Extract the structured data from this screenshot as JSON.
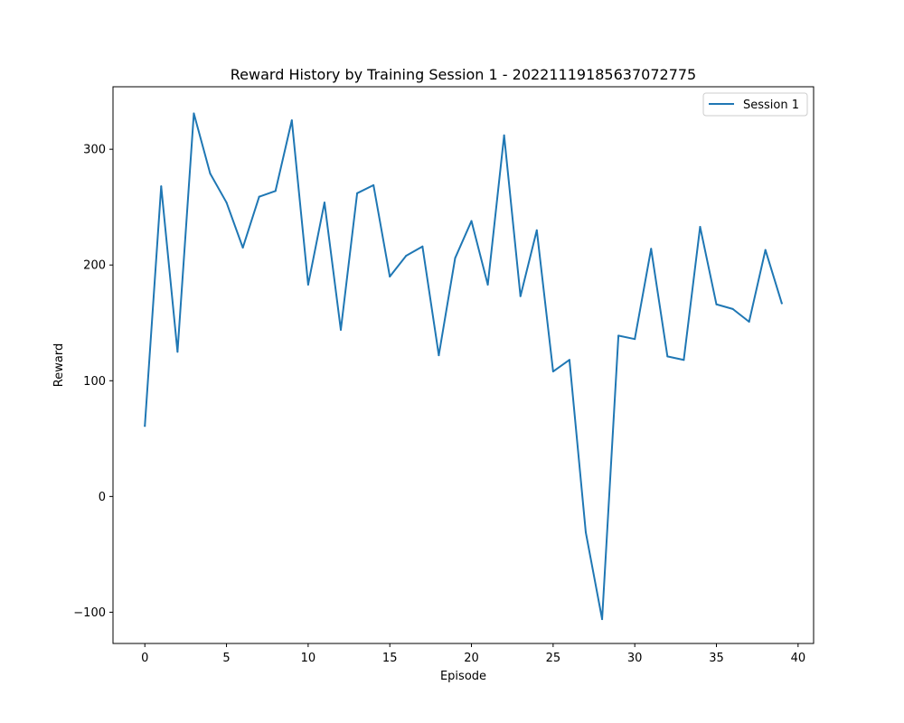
{
  "chart_data": {
    "type": "line",
    "title": "Reward History by Training Session 1 - 20221119185637072775",
    "xlabel": "Episode",
    "ylabel": "Reward",
    "xlim": [
      -1.95,
      40.95
    ],
    "ylim": [
      -127,
      354
    ],
    "xticks": [
      0,
      5,
      10,
      15,
      20,
      25,
      30,
      35,
      40
    ],
    "yticks": [
      -100,
      0,
      100,
      200,
      300
    ],
    "ytick_labels": [
      "−100",
      "0",
      "100",
      "200",
      "300"
    ],
    "grid": false,
    "legend_position": "top-right",
    "color": "#1f77b4",
    "series": [
      {
        "name": "Session 1",
        "x": [
          0,
          1,
          2,
          3,
          4,
          5,
          6,
          7,
          8,
          9,
          10,
          11,
          12,
          13,
          14,
          15,
          16,
          17,
          18,
          19,
          20,
          21,
          22,
          23,
          24,
          25,
          26,
          27,
          28,
          29,
          30,
          31,
          32,
          33,
          34,
          35,
          36,
          37,
          38,
          39
        ],
        "values": [
          61,
          268,
          125,
          331,
          279,
          254,
          215,
          259,
          264,
          325,
          183,
          254,
          144,
          262,
          269,
          190,
          208,
          216,
          122,
          206,
          238,
          183,
          312,
          173,
          230,
          108,
          118,
          -31,
          -106,
          139,
          136,
          214,
          121,
          118,
          233,
          166,
          162,
          151,
          213,
          167
        ]
      }
    ]
  }
}
